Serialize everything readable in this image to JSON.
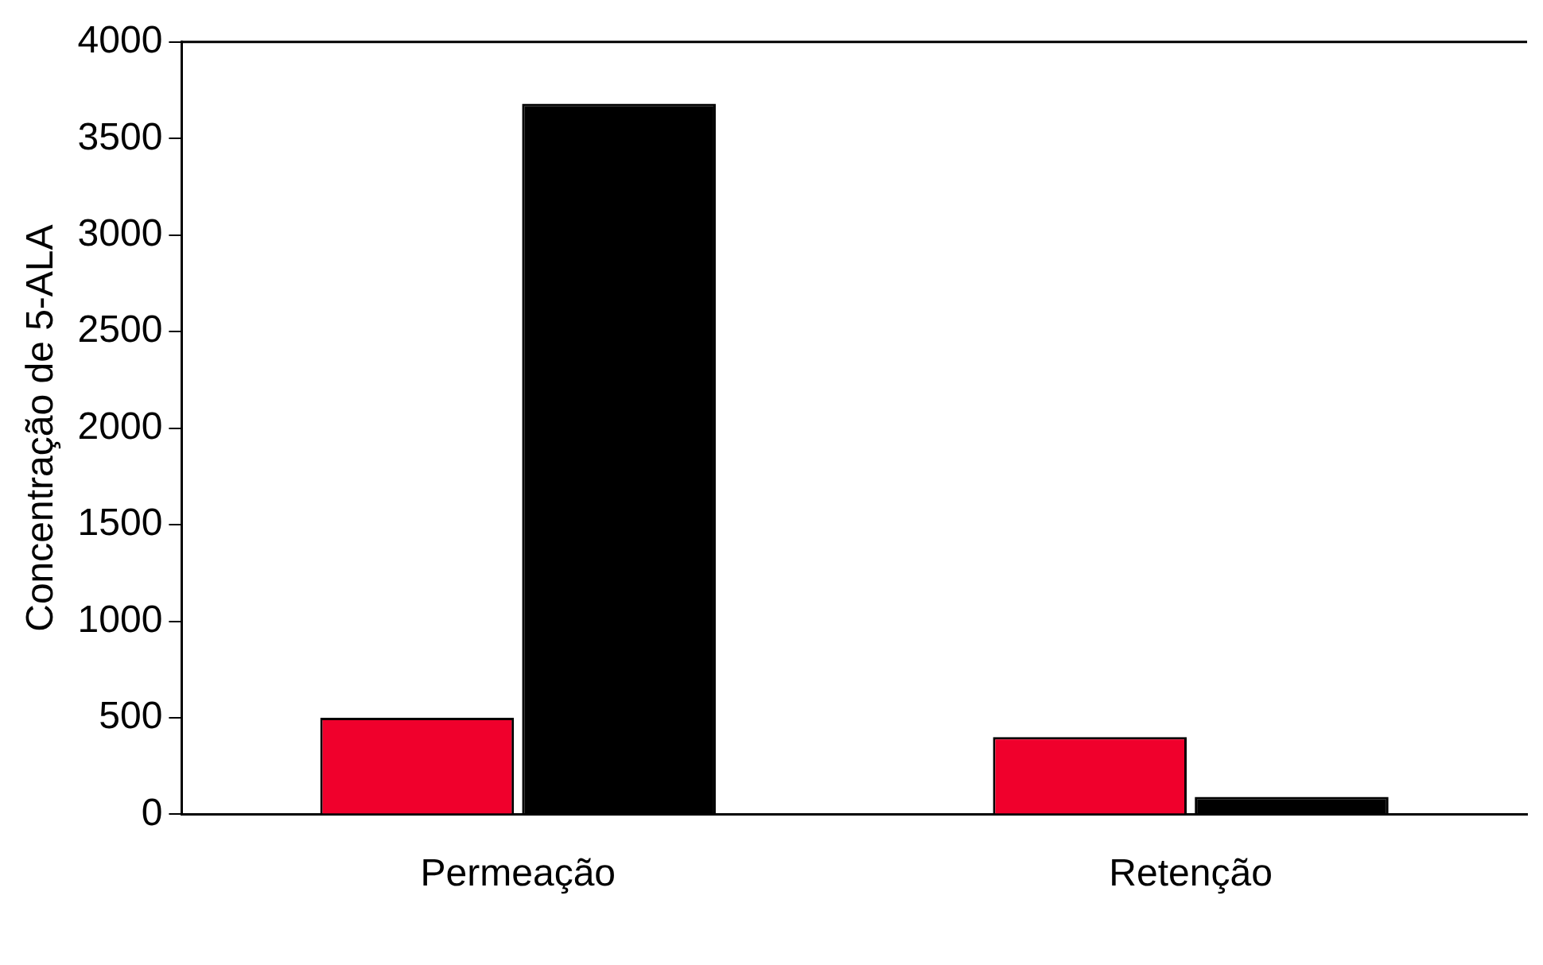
{
  "chart_data": {
    "type": "bar",
    "ylabel": "Concentração de 5-ALA",
    "categories": [
      "Permeação",
      "Retenção"
    ],
    "series": [
      {
        "color": "#f0002c",
        "values": [
          500,
          400
        ]
      },
      {
        "color": "#000000",
        "values": [
          3680,
          90
        ]
      }
    ],
    "ylim": [
      0,
      4000
    ],
    "yticks": [
      0,
      500,
      1000,
      1500,
      2000,
      2500,
      3000,
      3500,
      4000
    ],
    "grid": false,
    "legend": false
  }
}
